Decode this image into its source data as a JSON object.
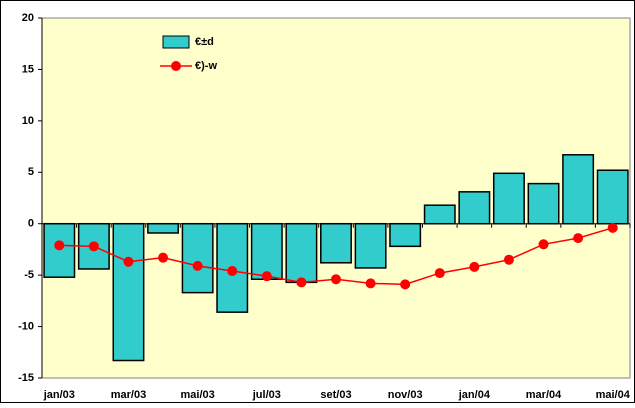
{
  "chart_data": {
    "type": "bar",
    "categories": [
      "jan/03",
      null,
      "mar/03",
      null,
      "mai/03",
      null,
      "jul/03",
      null,
      "set/03",
      null,
      "nov/03",
      null,
      "jan/04",
      null,
      "mar/04",
      null,
      "mai/04"
    ],
    "series": [
      {
        "name": "€±d",
        "type": "bar",
        "color": "#33cccc",
        "values": [
          -5.2,
          -4.4,
          -13.3,
          -0.9,
          -6.7,
          -8.6,
          -5.4,
          -5.7,
          -3.8,
          -4.3,
          -2.2,
          1.8,
          3.1,
          4.9,
          3.9,
          6.7,
          5.2
        ]
      },
      {
        "name": "€)-w",
        "type": "line",
        "color": "#ff0000",
        "values": [
          -2.1,
          -2.2,
          -3.7,
          -3.3,
          -4.1,
          -4.6,
          -5.1,
          -5.7,
          -5.4,
          -5.8,
          -5.9,
          -4.8,
          -4.2,
          -3.5,
          -2.0,
          -1.4,
          -0.4
        ]
      }
    ],
    "ylim": [
      -15,
      20
    ],
    "yticks": [
      -15,
      -10,
      -5,
      0,
      5,
      10,
      15,
      20
    ],
    "grid": false,
    "legend": "top-left"
  }
}
